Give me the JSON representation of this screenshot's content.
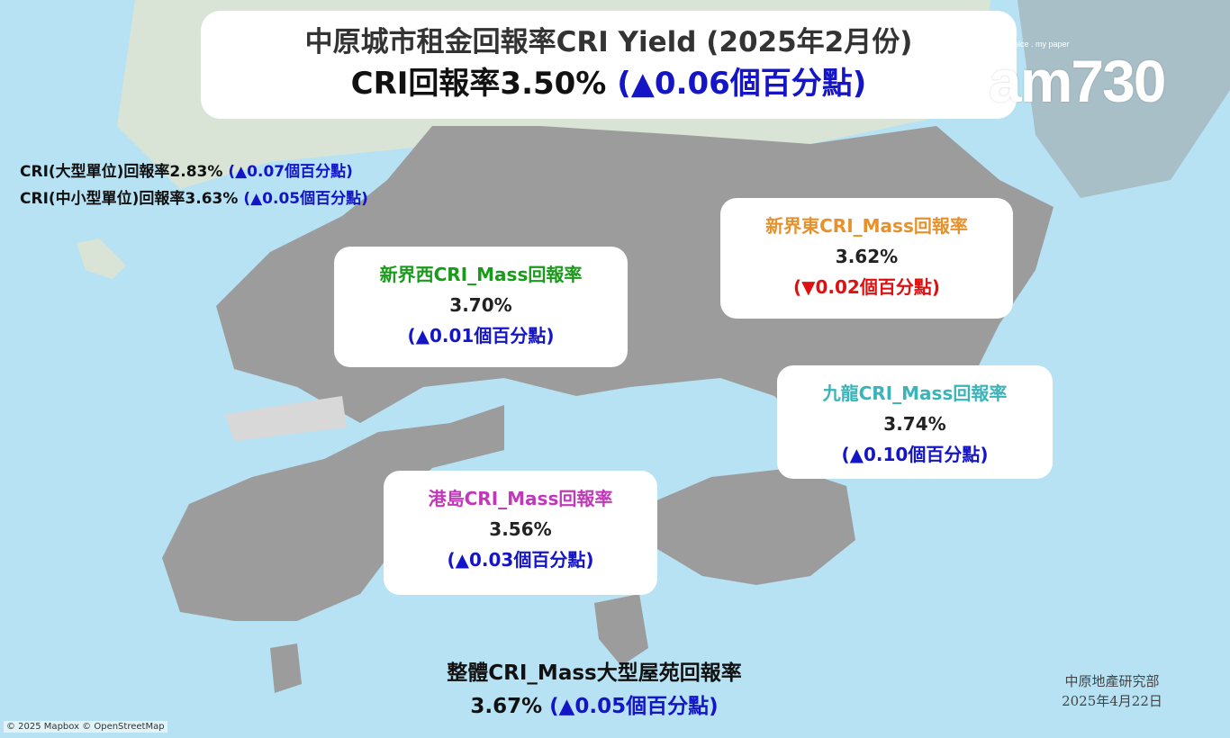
{
  "header": {
    "title": "中原城市租金回報率CRI Yield (2025年2月份)",
    "overall_label": "CRI回報率3.50%",
    "overall_change": "(▲0.06個百分點)"
  },
  "logo": {
    "tagline": "my choice . my paper",
    "name": "am730"
  },
  "side_stats": [
    {
      "label": "CRI(大型單位)回報率2.83%",
      "change": "(▲0.07個百分點)"
    },
    {
      "label": "CRI(中小型單位)回報率3.63%",
      "change": "(▲0.05個百分點)"
    }
  ],
  "regions": [
    {
      "name": "新界西CRI_Mass回報率",
      "rate": "3.70%",
      "change": "(▲0.01個百分點)",
      "color": "#1a9a1a",
      "change_color": "#1515c8"
    },
    {
      "name": "新界東CRI_Mass回報率",
      "rate": "3.62%",
      "change": "(▼0.02個百分點)",
      "color": "#e8912b",
      "change_color": "#e01010"
    },
    {
      "name": "九龍CRI_Mass回報率",
      "rate": "3.74%",
      "change": "(▲0.10個百分點)",
      "color": "#3ab4b8",
      "change_color": "#1515c8"
    },
    {
      "name": "港島CRI_Mass回報率",
      "rate": "3.56%",
      "change": "(▲0.03個百分點)",
      "color": "#c03ab8",
      "change_color": "#1515c8"
    }
  ],
  "overall_mass": {
    "label": "整體CRI_Mass大型屋苑回報率",
    "rate": "3.67%",
    "change": "(▲0.05個百分點)"
  },
  "credit": {
    "org": "中原地產研究部",
    "date": "2025年4月22日"
  },
  "attribution": "© 2025 Mapbox © OpenStreetMap",
  "colors": {
    "water": "#b6e2f3",
    "land": "#9a9a9a",
    "increase": "#1515c8",
    "decrease": "#e01010"
  }
}
